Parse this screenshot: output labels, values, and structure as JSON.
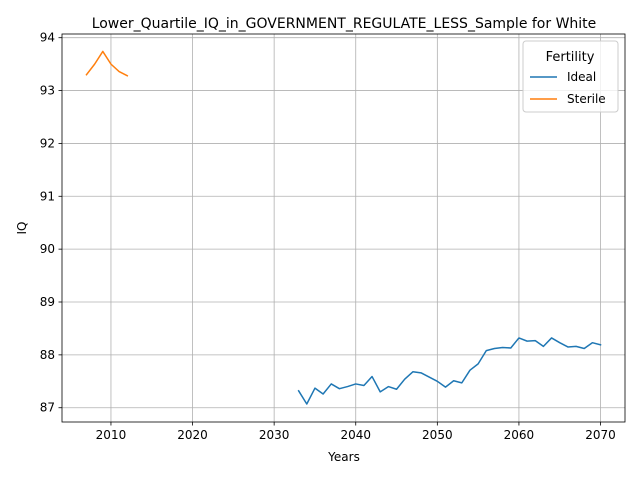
{
  "chart_data": {
    "type": "line",
    "title": "Lower_Quartile_IQ_in_GOVERNMENT_REGULATE_LESS_Sample for White",
    "xlabel": "Years",
    "ylabel": "IQ",
    "xlim": [
      2004,
      2073
    ],
    "ylim": [
      86.73,
      94.07
    ],
    "xticks": [
      2010,
      2020,
      2030,
      2040,
      2050,
      2060,
      2070
    ],
    "yticks": [
      87,
      88,
      89,
      90,
      91,
      92,
      93,
      94
    ],
    "grid": true,
    "legend": {
      "title": "Fertility",
      "position": "top-right"
    },
    "series": [
      {
        "name": "Ideal",
        "color": "#1f77b4",
        "x": [
          2033,
          2034,
          2035,
          2036,
          2037,
          2038,
          2039,
          2040,
          2041,
          2042,
          2043,
          2044,
          2045,
          2046,
          2047,
          2048,
          2049,
          2050,
          2051,
          2052,
          2053,
          2054,
          2055,
          2056,
          2057,
          2058,
          2059,
          2060,
          2061,
          2062,
          2063,
          2064,
          2065,
          2066,
          2067,
          2068,
          2069,
          2070
        ],
        "y": [
          87.32,
          87.07,
          87.37,
          87.26,
          87.45,
          87.36,
          87.4,
          87.45,
          87.42,
          87.59,
          87.3,
          87.4,
          87.35,
          87.54,
          87.68,
          87.66,
          87.58,
          87.5,
          87.39,
          87.51,
          87.47,
          87.71,
          87.83,
          88.08,
          88.12,
          88.14,
          88.13,
          88.32,
          88.26,
          88.27,
          88.16,
          88.32,
          88.23,
          88.15,
          88.16,
          88.12,
          88.23,
          88.19
        ]
      },
      {
        "name": "Sterile",
        "color": "#ff7f0e",
        "x": [
          2007,
          2008,
          2009,
          2010,
          2011,
          2012
        ],
        "y": [
          93.3,
          93.5,
          93.74,
          93.5,
          93.36,
          93.28
        ]
      }
    ]
  }
}
